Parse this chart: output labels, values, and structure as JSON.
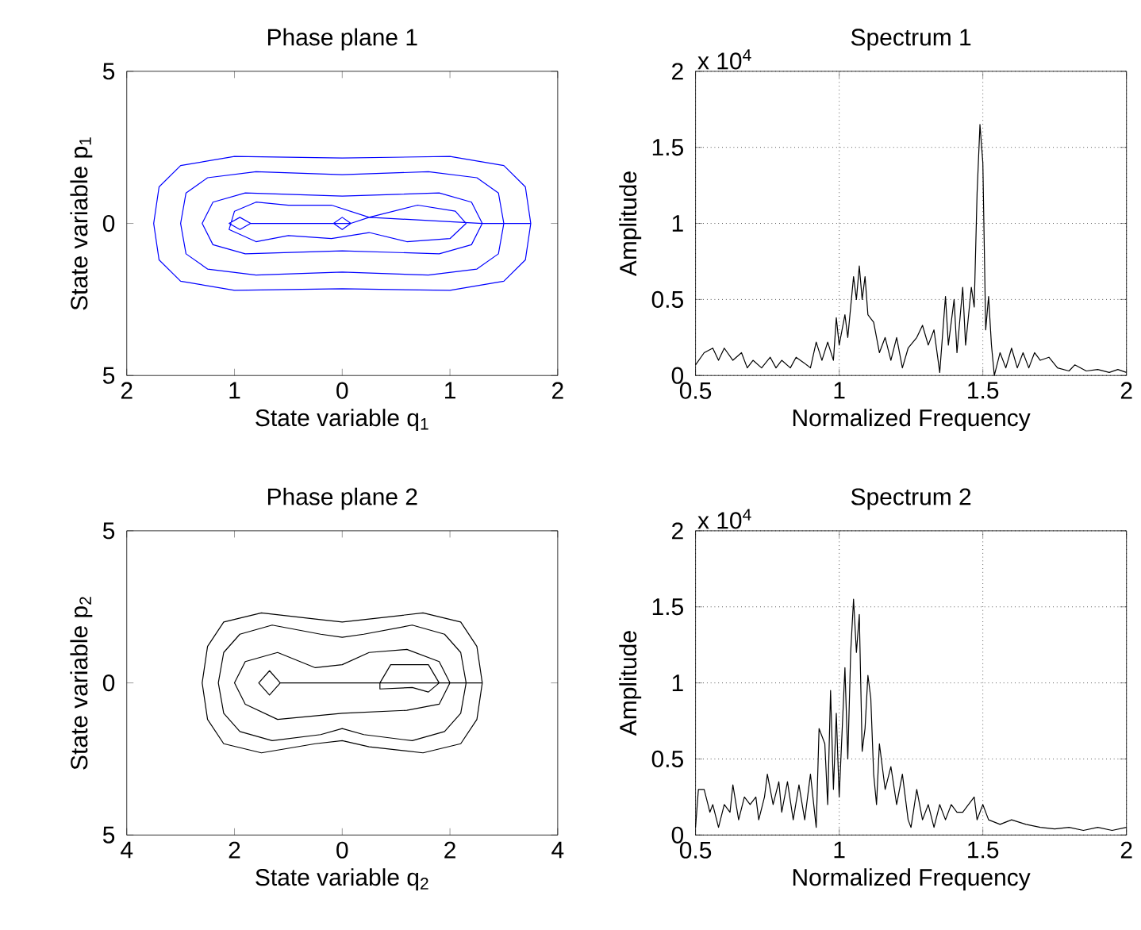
{
  "chart_data": [
    {
      "type": "line",
      "title": "Phase plane 1",
      "xlabel": "State variable q$_{1}$",
      "ylabel": "State variable p$_{1}$",
      "xlim": [
        -2,
        2
      ],
      "ylim": [
        -5,
        5
      ],
      "xticks": [
        {
          "value": -2,
          "label": "2"
        },
        {
          "value": -1,
          "label": "1"
        },
        0,
        1,
        2
      ],
      "yticks": [
        {
          "value": -5,
          "label": "5"
        },
        0,
        5
      ],
      "series": [
        {
          "color": "#0000ff",
          "x": [
            -0.85,
            -0.95,
            -1.05,
            -0.95,
            -0.85,
            0.08,
            0,
            -0.08,
            0,
            0.08,
            0.25,
            0.7,
            1.05,
            1.15,
            1.0,
            0.6,
            0.25,
            -0.1,
            -0.5,
            -0.8,
            -1.05,
            -1.0,
            -0.8,
            -0.5,
            -0.1,
            0.25,
            1.3,
            1.2,
            0.9,
            0,
            -0.9,
            -1.2,
            -1.3,
            -1.2,
            -0.9,
            0,
            0.9,
            1.2,
            1.3,
            1.5,
            1.45,
            1.25,
            0.8,
            0,
            -0.8,
            -1.25,
            -1.45,
            -1.5,
            -1.45,
            -1.25,
            -0.8,
            0,
            0.8,
            1.25,
            1.45,
            1.5,
            1.75,
            1.7,
            1.5,
            1.0,
            0,
            -1.0,
            -1.5,
            -1.7,
            -1.75,
            -1.7,
            -1.5,
            -1.0,
            0,
            1.0,
            1.5,
            1.7,
            1.75
          ],
          "values": [
            0,
            -0.2,
            0,
            0.2,
            0,
            0,
            -0.2,
            0,
            0.2,
            0,
            0.2,
            0.6,
            0.4,
            0,
            -0.5,
            -0.6,
            -0.3,
            -0.5,
            -0.4,
            -0.6,
            -0.2,
            0.4,
            0.7,
            0.6,
            0.6,
            0.2,
            0,
            -0.7,
            -1.0,
            -0.9,
            -1.0,
            -0.7,
            0,
            0.7,
            1.0,
            0.9,
            1.0,
            0.7,
            0,
            0,
            -1.0,
            -1.5,
            -1.7,
            -1.6,
            -1.7,
            -1.5,
            -1.0,
            0,
            1.0,
            1.5,
            1.7,
            1.6,
            1.7,
            1.5,
            1.0,
            0,
            0,
            -1.2,
            -1.9,
            -2.2,
            -2.15,
            -2.2,
            -1.9,
            -1.2,
            0,
            1.2,
            1.9,
            2.2,
            2.15,
            2.2,
            1.9,
            1.2,
            0
          ]
        }
      ]
    },
    {
      "type": "line",
      "title": "Spectrum 1",
      "xlabel": "Normalized Frequency",
      "ylabel": "Amplitude",
      "annotations": [
        "x 10$^{4}$"
      ],
      "xlim": [
        0.5,
        2
      ],
      "ylim": [
        0,
        2
      ],
      "xticks": [
        0.5,
        1,
        1.5,
        2
      ],
      "yticks": [
        0,
        0.5,
        1,
        1.5,
        2
      ],
      "grid": true,
      "series": [
        {
          "color": "#000000",
          "x": [
            0.5,
            0.53,
            0.56,
            0.58,
            0.6,
            0.63,
            0.66,
            0.68,
            0.7,
            0.73,
            0.76,
            0.78,
            0.8,
            0.83,
            0.85,
            0.88,
            0.9,
            0.92,
            0.94,
            0.96,
            0.98,
            0.99,
            1.0,
            1.02,
            1.03,
            1.05,
            1.06,
            1.07,
            1.08,
            1.09,
            1.1,
            1.12,
            1.14,
            1.16,
            1.18,
            1.2,
            1.22,
            1.24,
            1.27,
            1.29,
            1.31,
            1.33,
            1.35,
            1.37,
            1.38,
            1.4,
            1.41,
            1.43,
            1.44,
            1.46,
            1.47,
            1.48,
            1.49,
            1.5,
            1.51,
            1.52,
            1.53,
            1.54,
            1.56,
            1.58,
            1.6,
            1.62,
            1.64,
            1.66,
            1.68,
            1.7,
            1.73,
            1.76,
            1.8,
            1.82,
            1.86,
            1.9,
            1.94,
            1.97,
            2.0
          ],
          "values": [
            0.07,
            0.15,
            0.18,
            0.1,
            0.18,
            0.1,
            0.15,
            0.05,
            0.1,
            0.05,
            0.12,
            0.05,
            0.1,
            0.05,
            0.12,
            0.08,
            0.05,
            0.22,
            0.1,
            0.22,
            0.1,
            0.38,
            0.2,
            0.4,
            0.25,
            0.65,
            0.5,
            0.72,
            0.5,
            0.65,
            0.4,
            0.35,
            0.15,
            0.25,
            0.1,
            0.25,
            0.05,
            0.18,
            0.25,
            0.33,
            0.2,
            0.3,
            0.02,
            0.52,
            0.2,
            0.5,
            0.15,
            0.58,
            0.2,
            0.58,
            0.45,
            1.2,
            1.65,
            1.4,
            0.3,
            0.52,
            0.2,
            0.0,
            0.15,
            0.05,
            0.18,
            0.05,
            0.15,
            0.05,
            0.15,
            0.1,
            0.12,
            0.05,
            0.03,
            0.07,
            0.03,
            0.04,
            0.02,
            0.04,
            0.02
          ]
        }
      ]
    },
    {
      "type": "line",
      "title": "Phase plane 2",
      "xlabel": "State variable q$_{2}$",
      "ylabel": "State variable p$_{2}$",
      "xlim": [
        -4,
        4
      ],
      "ylim": [
        -5,
        5
      ],
      "xticks": [
        {
          "value": -4,
          "label": "4"
        },
        {
          "value": -2,
          "label": "2"
        },
        0,
        2,
        4
      ],
      "yticks": [
        {
          "value": -5,
          "label": "5"
        },
        0,
        5
      ],
      "series": [
        {
          "color": "#000000",
          "x": [
            -1.15,
            -1.35,
            -1.55,
            -1.35,
            -1.15,
            0.7,
            0.9,
            1.6,
            1.8,
            1.6,
            1.3,
            0.7,
            0.7,
            2.0,
            1.8,
            1.2,
            0,
            -1.2,
            -1.8,
            -2.0,
            -1.8,
            -1.2,
            -0.5,
            0,
            0.5,
            1.2,
            1.8,
            2.0,
            2.3,
            2.2,
            1.9,
            1.3,
            0.4,
            0,
            -0.4,
            -1.3,
            -1.9,
            -2.2,
            -2.3,
            -2.2,
            -1.9,
            -1.3,
            -0.4,
            0,
            0.4,
            1.3,
            1.9,
            2.2,
            2.3,
            2.6,
            2.5,
            2.2,
            1.5,
            0.5,
            0,
            -0.5,
            -1.5,
            -2.2,
            -2.5,
            -2.6,
            -2.5,
            -2.2,
            -1.5,
            -0.5,
            0,
            0.5,
            1.5,
            2.2,
            2.5,
            2.6
          ],
          "values": [
            0,
            -0.4,
            0,
            0.4,
            0,
            0,
            0.6,
            0.6,
            0,
            -0.3,
            -0.15,
            -0.2,
            0,
            0,
            -0.7,
            -0.9,
            -1.0,
            -1.2,
            -0.7,
            0,
            0.7,
            1.0,
            0.5,
            0.6,
            1.0,
            1.1,
            0.7,
            0,
            0,
            -1.0,
            -1.6,
            -1.9,
            -1.7,
            -1.5,
            -1.7,
            -1.9,
            -1.6,
            -1.0,
            0,
            1.0,
            1.6,
            1.9,
            1.6,
            1.5,
            1.6,
            1.9,
            1.6,
            1.0,
            0,
            0,
            -1.2,
            -2.0,
            -2.3,
            -2.1,
            -1.9,
            -2.0,
            -2.3,
            -2.0,
            -1.2,
            0,
            1.2,
            2.0,
            2.3,
            2.1,
            2.0,
            2.1,
            2.3,
            2.0,
            1.2,
            0
          ]
        }
      ]
    },
    {
      "type": "line",
      "title": "Spectrum 2",
      "xlabel": "Normalized Frequency",
      "ylabel": "Amplitude",
      "annotations": [
        "x 10$^{4}$"
      ],
      "xlim": [
        0.5,
        2
      ],
      "ylim": [
        0,
        2
      ],
      "xticks": [
        0.5,
        1,
        1.5,
        2
      ],
      "yticks": [
        0,
        0.5,
        1,
        1.5,
        2
      ],
      "grid": true,
      "series": [
        {
          "color": "#000000",
          "x": [
            0.5,
            0.51,
            0.53,
            0.55,
            0.56,
            0.58,
            0.6,
            0.62,
            0.63,
            0.65,
            0.67,
            0.69,
            0.71,
            0.72,
            0.74,
            0.75,
            0.77,
            0.79,
            0.8,
            0.82,
            0.84,
            0.86,
            0.88,
            0.9,
            0.92,
            0.93,
            0.95,
            0.96,
            0.97,
            0.98,
            0.99,
            1.0,
            1.02,
            1.03,
            1.04,
            1.05,
            1.06,
            1.07,
            1.08,
            1.09,
            1.1,
            1.11,
            1.12,
            1.13,
            1.14,
            1.16,
            1.18,
            1.2,
            1.22,
            1.24,
            1.25,
            1.27,
            1.29,
            1.31,
            1.33,
            1.35,
            1.37,
            1.39,
            1.41,
            1.43,
            1.45,
            1.47,
            1.48,
            1.5,
            1.52,
            1.56,
            1.6,
            1.65,
            1.7,
            1.75,
            1.8,
            1.85,
            1.9,
            1.95,
            2.0
          ],
          "values": [
            0.05,
            0.3,
            0.3,
            0.15,
            0.2,
            0.05,
            0.2,
            0.15,
            0.33,
            0.1,
            0.25,
            0.2,
            0.25,
            0.1,
            0.25,
            0.4,
            0.2,
            0.35,
            0.15,
            0.35,
            0.1,
            0.33,
            0.1,
            0.4,
            0.05,
            0.7,
            0.6,
            0.2,
            0.95,
            0.3,
            0.8,
            0.25,
            1.1,
            0.5,
            1.2,
            1.55,
            1.2,
            1.45,
            0.55,
            0.7,
            1.05,
            0.9,
            0.4,
            0.2,
            0.6,
            0.3,
            0.45,
            0.2,
            0.4,
            0.1,
            0.05,
            0.3,
            0.1,
            0.2,
            0.05,
            0.2,
            0.1,
            0.2,
            0.15,
            0.15,
            0.2,
            0.25,
            0.1,
            0.2,
            0.1,
            0.07,
            0.1,
            0.07,
            0.05,
            0.04,
            0.05,
            0.03,
            0.05,
            0.03,
            0.05
          ]
        }
      ]
    }
  ]
}
